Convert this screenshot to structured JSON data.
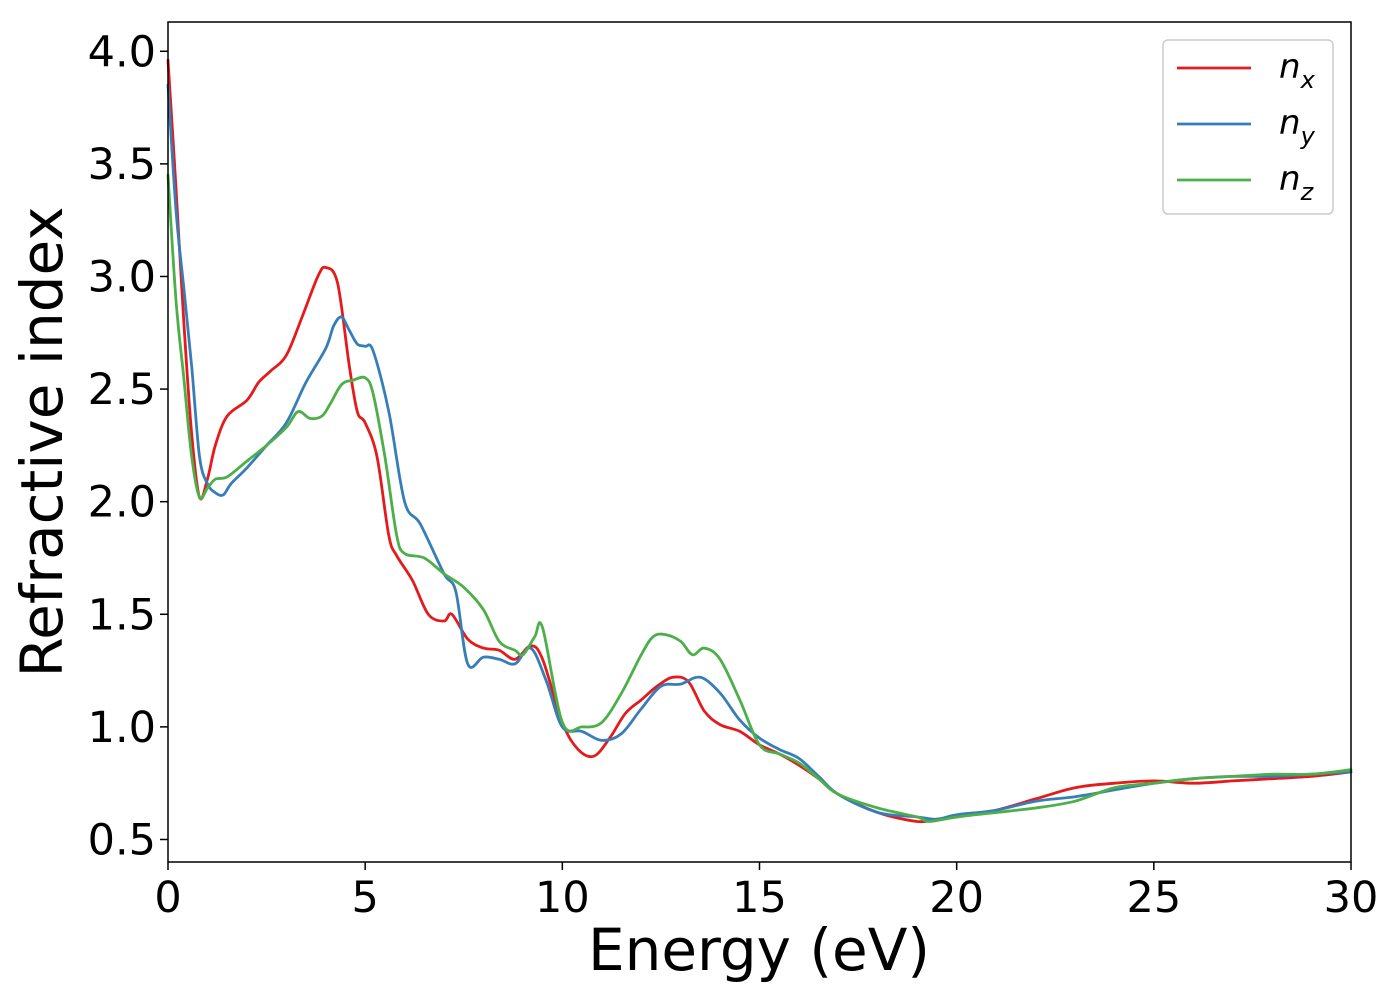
{
  "chart_data": {
    "type": "line",
    "xlabel": "Energy (eV)",
    "ylabel": "Refractive index",
    "xlim": [
      0,
      30
    ],
    "ylim": [
      0.4,
      4.13
    ],
    "xticks": [
      0,
      5,
      10,
      15,
      20,
      25,
      30
    ],
    "xtick_labels": [
      "0",
      "5",
      "10",
      "15",
      "20",
      "25",
      "30"
    ],
    "yticks": [
      0.5,
      1.0,
      1.5,
      2.0,
      2.5,
      3.0,
      3.5,
      4.0
    ],
    "ytick_labels": [
      "0.5",
      "1.0",
      "1.5",
      "2.0",
      "2.5",
      "3.0",
      "3.5",
      "4.0"
    ],
    "grid": false,
    "legend_position": "top-right",
    "series": [
      {
        "name": "n_x",
        "label_base": "n",
        "label_sub": "x",
        "color": "#e41a1c",
        "x": [
          0,
          0.2,
          0.4,
          0.6,
          0.8,
          1.0,
          1.2,
          1.5,
          2.0,
          2.3,
          2.6,
          3.0,
          3.4,
          3.8,
          4.0,
          4.3,
          4.6,
          4.8,
          5.0,
          5.3,
          5.6,
          5.8,
          6.2,
          6.6,
          7.0,
          7.2,
          7.6,
          8.0,
          8.4,
          8.8,
          9.2,
          9.5,
          10.0,
          10.4,
          10.8,
          11.2,
          11.6,
          12.0,
          12.4,
          12.8,
          13.2,
          13.6,
          14.0,
          14.5,
          15.0,
          15.5,
          16.0,
          16.5,
          17.0,
          18.0,
          19.0,
          19.5,
          20.0,
          21.0,
          22.0,
          23.0,
          24.0,
          25.0,
          26.0,
          27.0,
          28.0,
          29.0,
          30.0
        ],
        "y": [
          3.96,
          3.4,
          2.8,
          2.3,
          2.02,
          2.1,
          2.25,
          2.38,
          2.45,
          2.53,
          2.58,
          2.65,
          2.82,
          3.0,
          3.04,
          2.97,
          2.6,
          2.4,
          2.35,
          2.2,
          1.85,
          1.76,
          1.65,
          1.5,
          1.47,
          1.5,
          1.39,
          1.35,
          1.34,
          1.3,
          1.36,
          1.3,
          1.02,
          0.9,
          0.87,
          0.95,
          1.06,
          1.12,
          1.18,
          1.22,
          1.2,
          1.07,
          1.01,
          0.98,
          0.92,
          0.88,
          0.83,
          0.77,
          0.7,
          0.62,
          0.58,
          0.59,
          0.6,
          0.63,
          0.68,
          0.73,
          0.75,
          0.76,
          0.75,
          0.76,
          0.77,
          0.78,
          0.8
        ]
      },
      {
        "name": "n_y",
        "label_base": "n",
        "label_sub": "y",
        "color": "#377eb8",
        "x": [
          0,
          0.2,
          0.4,
          0.6,
          0.8,
          1.0,
          1.2,
          1.4,
          1.6,
          2.0,
          2.5,
          3.0,
          3.5,
          4.0,
          4.2,
          4.4,
          4.6,
          4.8,
          5.0,
          5.2,
          5.6,
          6.0,
          6.4,
          7.0,
          7.3,
          7.6,
          8.0,
          8.4,
          8.8,
          9.2,
          9.6,
          10.0,
          10.5,
          11.0,
          11.5,
          12.0,
          12.5,
          13.0,
          13.5,
          14.0,
          14.5,
          15.0,
          15.5,
          16.0,
          16.5,
          17.0,
          18.0,
          19.0,
          19.5,
          20.0,
          21.0,
          22.0,
          23.0,
          24.0,
          25.0,
          26.0,
          27.0,
          28.0,
          29.0,
          30.0
        ],
        "y": [
          3.85,
          3.3,
          2.95,
          2.6,
          2.2,
          2.08,
          2.04,
          2.03,
          2.08,
          2.15,
          2.25,
          2.35,
          2.53,
          2.68,
          2.78,
          2.82,
          2.76,
          2.7,
          2.69,
          2.67,
          2.4,
          2.0,
          1.9,
          1.68,
          1.6,
          1.28,
          1.31,
          1.3,
          1.28,
          1.35,
          1.2,
          1.0,
          0.98,
          0.94,
          0.97,
          1.08,
          1.18,
          1.19,
          1.22,
          1.15,
          1.03,
          0.95,
          0.9,
          0.86,
          0.78,
          0.7,
          0.62,
          0.6,
          0.59,
          0.61,
          0.63,
          0.67,
          0.69,
          0.72,
          0.75,
          0.77,
          0.78,
          0.78,
          0.79,
          0.8
        ]
      },
      {
        "name": "n_z",
        "label_base": "n",
        "label_sub": "z",
        "color": "#4daf4a",
        "x": [
          0,
          0.2,
          0.4,
          0.6,
          0.8,
          1.0,
          1.2,
          1.5,
          2.0,
          2.5,
          3.0,
          3.3,
          3.6,
          3.9,
          4.1,
          4.4,
          4.7,
          5.0,
          5.2,
          5.5,
          5.8,
          6.0,
          6.5,
          7.0,
          7.5,
          8.0,
          8.4,
          8.8,
          9.0,
          9.3,
          9.5,
          10.0,
          10.5,
          11.0,
          11.5,
          12.0,
          12.3,
          12.6,
          13.0,
          13.3,
          13.6,
          14.0,
          14.5,
          15.0,
          15.5,
          16.0,
          16.5,
          17.0,
          18.0,
          19.0,
          19.3,
          20.0,
          21.0,
          22.0,
          23.0,
          24.0,
          25.0,
          26.0,
          27.0,
          28.0,
          29.0,
          30.0
        ],
        "y": [
          3.45,
          2.9,
          2.55,
          2.2,
          2.02,
          2.06,
          2.1,
          2.11,
          2.18,
          2.25,
          2.33,
          2.4,
          2.37,
          2.38,
          2.43,
          2.52,
          2.54,
          2.55,
          2.48,
          2.2,
          1.85,
          1.77,
          1.75,
          1.68,
          1.62,
          1.52,
          1.38,
          1.34,
          1.32,
          1.4,
          1.44,
          1.02,
          1.0,
          1.02,
          1.15,
          1.32,
          1.4,
          1.41,
          1.38,
          1.32,
          1.35,
          1.3,
          1.12,
          0.92,
          0.88,
          0.84,
          0.77,
          0.7,
          0.64,
          0.6,
          0.58,
          0.6,
          0.62,
          0.64,
          0.67,
          0.73,
          0.75,
          0.77,
          0.78,
          0.79,
          0.79,
          0.81
        ]
      }
    ]
  }
}
